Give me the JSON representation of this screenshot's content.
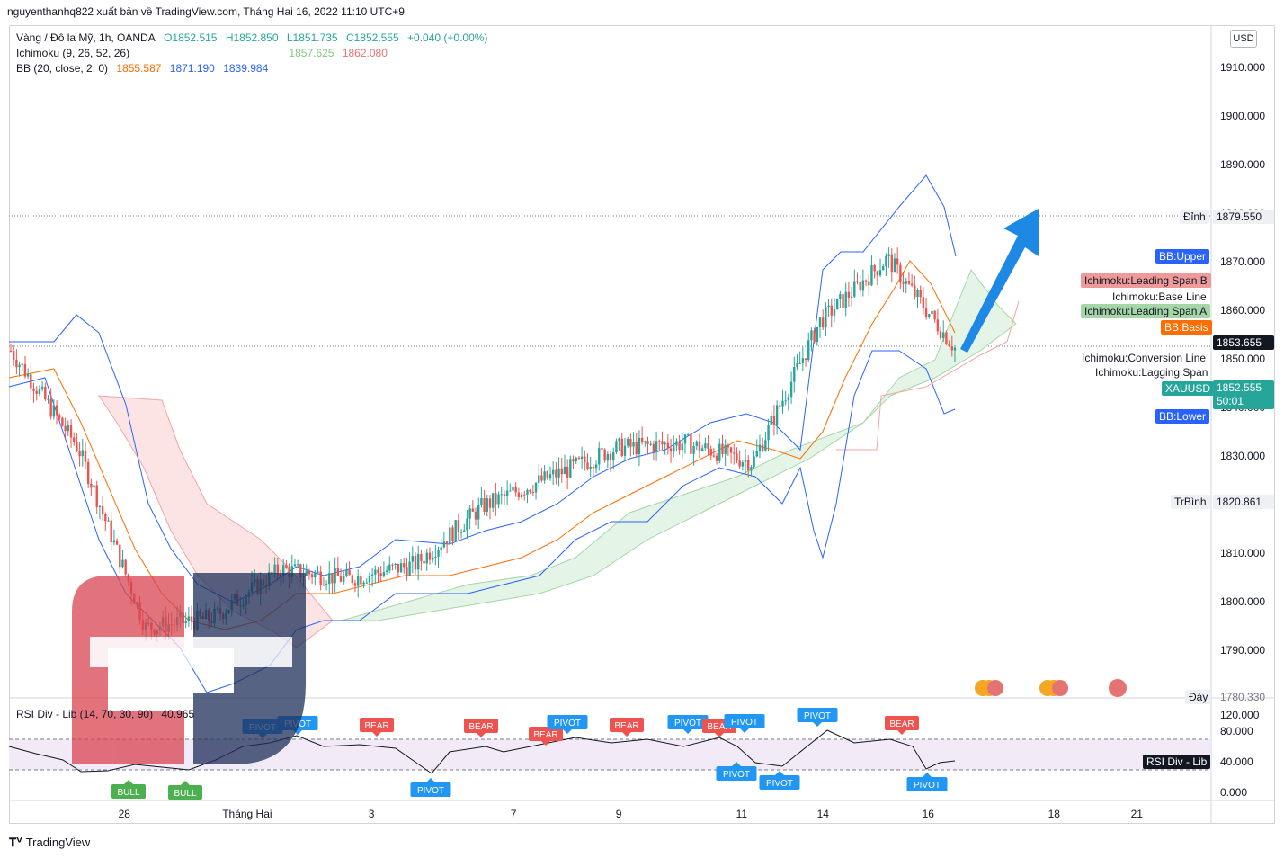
{
  "header": {
    "publish_line": "nguyenthanhq822 xuất bản về TradingView.com, Tháng Hai 16, 2022 11:10 UTC+9"
  },
  "legend": {
    "symbol": "Vàng / Đô la Mỹ, 1h, OANDA",
    "open": "O1852.515",
    "high": "H1852.850",
    "low": "L1851.735",
    "close": "C1852.555",
    "change": "+0.040 (+0.00%)",
    "ichimoku_label": "Ichimoku (9, 26, 52, 26)",
    "ichimoku_a": "1857.625",
    "ichimoku_b": "1862.080",
    "bb_label": "BB (20, close, 2, 0)",
    "bb_basis": "1855.587",
    "bb_upper": "1871.190",
    "bb_lower": "1839.984"
  },
  "currency_button": "USD",
  "price_axis": {
    "ticks": [
      "1910.000",
      "1900.000",
      "1890.000",
      "1880.000",
      "1870.000",
      "1860.000",
      "1850.000",
      "1840.000",
      "1830.000",
      "1820.000",
      "1810.000",
      "1800.000",
      "1790.000"
    ],
    "bottom_clip": "1780.330"
  },
  "time_axis": {
    "ticks": [
      "28",
      "Tháng Hai",
      "3",
      "7",
      "9",
      "11",
      "14",
      "16",
      "18",
      "21"
    ]
  },
  "price_tags": {
    "high_name": "Đỉnh",
    "high_value": "1879.550",
    "mid_name": "TrBình",
    "mid_value": "1820.861",
    "low_name": "Đáy",
    "crosshair": "1853.655",
    "xauusd_name": "XAUUSD",
    "xauusd_value": "1852.555",
    "countdown": "50:01",
    "bb_upper": "BB:Upper",
    "ich_span_b": "Ichimoku:Leading Span B",
    "ich_base": "Ichimoku:Base Line",
    "ich_span_a": "Ichimoku:Leading Span A",
    "bb_basis": "BB:Basis",
    "ich_conv": "Ichimoku:Conversion Line",
    "ich_lag": "Ichimoku:Lagging Span",
    "bb_lower": "BB:Lower"
  },
  "rsi_panel": {
    "title": "RSI Div - Lib (14, 70, 30, 90)",
    "value": "40.965",
    "axis": [
      "120.000",
      "80.000",
      "40.000",
      "0.000"
    ],
    "tag": "RSI Div - Lib",
    "labels": [
      {
        "text": "BEAR",
        "color": "#ef5350",
        "dir": "down",
        "x": 419,
        "y": 806
      },
      {
        "text": "BEAR",
        "color": "#ef5350",
        "dir": "down",
        "x": 535,
        "y": 807
      },
      {
        "text": "BEAR",
        "color": "#ef5350",
        "dir": "down",
        "x": 607,
        "y": 816
      },
      {
        "text": "PIVOT",
        "color": "#2196f3",
        "dir": "down",
        "x": 631,
        "y": 803
      },
      {
        "text": "BEAR",
        "color": "#ef5350",
        "dir": "down",
        "x": 697,
        "y": 806
      },
      {
        "text": "PIVOT",
        "color": "#2196f3",
        "dir": "down",
        "x": 765,
        "y": 803
      },
      {
        "text": "BEAR",
        "color": "#ef5350",
        "dir": "down",
        "x": 800,
        "y": 807
      },
      {
        "text": "PIVOT",
        "color": "#2196f3",
        "dir": "down",
        "x": 828,
        "y": 802
      },
      {
        "text": "PIVOT",
        "color": "#2196f3",
        "dir": "down",
        "x": 909,
        "y": 795
      },
      {
        "text": "BEAR",
        "color": "#ef5350",
        "dir": "down",
        "x": 1003,
        "y": 804
      },
      {
        "text": "PIVOT",
        "color": "#2196f3",
        "dir": "down",
        "x": 292,
        "y": 808
      },
      {
        "text": "PIVOT",
        "color": "#2196f3",
        "dir": "down",
        "x": 331,
        "y": 804
      },
      {
        "text": "PIVOT",
        "color": "#2196f3",
        "dir": "up",
        "x": 479,
        "y": 878
      },
      {
        "text": "PIVOT",
        "color": "#2196f3",
        "dir": "up",
        "x": 819,
        "y": 860
      },
      {
        "text": "PIVOT",
        "color": "#2196f3",
        "dir": "up",
        "x": 867,
        "y": 870
      },
      {
        "text": "PIVOT",
        "color": "#2196f3",
        "dir": "up",
        "x": 1031,
        "y": 872
      },
      {
        "text": "BULL",
        "color": "#4caf50",
        "dir": "up",
        "x": 143,
        "y": 880
      },
      {
        "text": "BULL",
        "color": "#4caf50",
        "dir": "up",
        "x": 206,
        "y": 881
      }
    ]
  },
  "colors": {
    "bb": "#2962ff",
    "basis": "#ff6d00",
    "span_a": "#a5d6a7",
    "span_b": "#ef9a9a",
    "up": "#26a69a",
    "down": "#ef5350",
    "arrow": "#1e88e5"
  },
  "chart_data": {
    "type": "candlestick",
    "symbol": "Vàng / Đô la Mỹ, 1h, OANDA",
    "ylim": [
      1780.33,
      1914
    ],
    "close_series": {
      "x": [
        "27",
        "28",
        "31",
        "Tháng Hai",
        "2",
        "3",
        "4",
        "7",
        "8",
        "9",
        "10",
        "11",
        "14",
        "15",
        "16"
      ],
      "values": [
        1852,
        1832,
        1795,
        1797,
        1807,
        1805,
        1808,
        1820,
        1826,
        1832,
        1833,
        1829,
        1858,
        1871,
        1852.555
      ]
    },
    "bb_upper_last": 1871.19,
    "bb_basis_last": 1855.587,
    "bb_lower_last": 1839.984,
    "rsi_last": 40.965
  }
}
